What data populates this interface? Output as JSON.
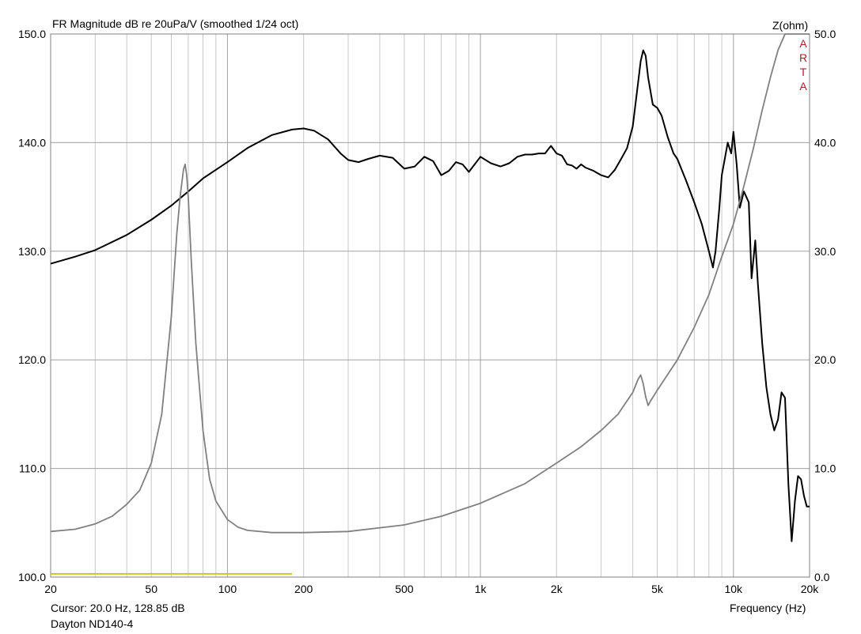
{
  "header": {
    "title": "FR Magnitude dB re 20uPa/V (smoothed 1/24 oct)",
    "right_axis_title": "Z(ohm)",
    "watermark": [
      "A",
      "R",
      "T",
      "A"
    ]
  },
  "footer": {
    "cursor": "Cursor: 20.0 Hz, 128.85 dB",
    "device": "Dayton ND140-4",
    "x_axis_label": "Frequency (Hz)"
  },
  "chart_data": {
    "type": "line",
    "title": "FR Magnitude dB re 20uPa/V (smoothed 1/24 oct)",
    "xlabel": "Frequency (Hz)",
    "ylabel": "",
    "y2label": "Z(ohm)",
    "xscale": "log",
    "xlim": [
      20,
      20000
    ],
    "ylim": [
      100,
      150
    ],
    "y2lim": [
      0,
      50
    ],
    "grid": true,
    "x_ticks": [
      {
        "v": 20,
        "label": "20"
      },
      {
        "v": 50,
        "label": "50"
      },
      {
        "v": 100,
        "label": "100"
      },
      {
        "v": 200,
        "label": "200"
      },
      {
        "v": 500,
        "label": "500"
      },
      {
        "v": 1000,
        "label": "1k"
      },
      {
        "v": 2000,
        "label": "2k"
      },
      {
        "v": 5000,
        "label": "5k"
      },
      {
        "v": 10000,
        "label": "10k"
      },
      {
        "v": 20000,
        "label": "20k"
      }
    ],
    "y_ticks": [
      "100.0",
      "110.0",
      "120.0",
      "130.0",
      "140.0",
      "150.0"
    ],
    "y2_ticks": [
      "0.0",
      "10.0",
      "20.0",
      "30.0",
      "40.0",
      "50.0"
    ],
    "colors": {
      "frequency_response": "#000000",
      "impedance": "#808080",
      "marker": "#c8c820",
      "grid": "#a0a0a0"
    },
    "series": [
      {
        "key": "frequency_response",
        "axis": "left",
        "x": [
          20,
          25,
          30,
          40,
          50,
          60,
          70,
          80,
          100,
          120,
          150,
          180,
          200,
          220,
          250,
          280,
          300,
          330,
          360,
          400,
          450,
          500,
          550,
          600,
          650,
          700,
          750,
          800,
          850,
          900,
          1000,
          1100,
          1200,
          1300,
          1400,
          1500,
          1600,
          1700,
          1800,
          1900,
          2000,
          2100,
          2200,
          2300,
          2400,
          2500,
          2600,
          2800,
          3000,
          3200,
          3400,
          3600,
          3800,
          4000,
          4200,
          4300,
          4400,
          4500,
          4600,
          4800,
          5000,
          5200,
          5500,
          5800,
          6000,
          6500,
          7000,
          7500,
          8000,
          8300,
          8500,
          8800,
          9000,
          9500,
          9800,
          10000,
          10300,
          10600,
          11000,
          11500,
          11800,
          12200,
          12500,
          13000,
          13500,
          14000,
          14500,
          15000,
          15500,
          16000,
          16500,
          17000,
          17500,
          18000,
          18500,
          19000,
          19500,
          20000
        ],
        "y": [
          128.85,
          129.5,
          130.1,
          131.5,
          132.9,
          134.2,
          135.5,
          136.7,
          138.2,
          139.5,
          140.7,
          141.2,
          141.3,
          141.1,
          140.3,
          139.0,
          138.4,
          138.2,
          138.5,
          138.8,
          138.6,
          137.6,
          137.8,
          138.7,
          138.3,
          137.0,
          137.4,
          138.2,
          138.0,
          137.3,
          138.7,
          138.1,
          137.8,
          138.1,
          138.7,
          138.9,
          138.9,
          139.0,
          139.0,
          139.7,
          139.0,
          138.8,
          138.0,
          137.9,
          137.6,
          138.0,
          137.7,
          137.4,
          137.0,
          136.8,
          137.5,
          138.5,
          139.5,
          141.5,
          145.5,
          147.5,
          148.5,
          148.0,
          146.0,
          143.5,
          143.2,
          142.5,
          140.5,
          139.0,
          138.5,
          136.5,
          134.5,
          132.5,
          130.0,
          128.5,
          130.0,
          134.0,
          137.0,
          140.0,
          139.0,
          141.0,
          138.0,
          134.0,
          135.5,
          134.5,
          127.5,
          131.0,
          127.0,
          121.5,
          117.5,
          115.0,
          113.5,
          114.5,
          117.0,
          116.5,
          108.5,
          103.3,
          107.0,
          109.3,
          109.0,
          107.5,
          106.5,
          106.5
        ]
      },
      {
        "key": "impedance",
        "axis": "right",
        "x": [
          20,
          25,
          30,
          35,
          40,
          45,
          50,
          55,
          60,
          63,
          65,
          67,
          68,
          69,
          70,
          72,
          75,
          80,
          85,
          90,
          100,
          110,
          120,
          150,
          200,
          300,
          500,
          700,
          1000,
          1500,
          2000,
          2500,
          3000,
          3500,
          4000,
          4200,
          4300,
          4400,
          4500,
          4600,
          4700,
          5000,
          6000,
          7000,
          8000,
          9000,
          10000,
          11000,
          12000,
          13000,
          14000,
          15000,
          16000,
          17000,
          18000,
          19000,
          19500,
          20000
        ],
        "y": [
          4.2,
          4.4,
          4.9,
          5.6,
          6.7,
          8.0,
          10.5,
          15.0,
          24.0,
          31.5,
          35.0,
          37.5,
          38.0,
          37.0,
          35.0,
          29.0,
          21.5,
          13.5,
          9.0,
          7.0,
          5.3,
          4.6,
          4.3,
          4.1,
          4.1,
          4.2,
          4.8,
          5.6,
          6.8,
          8.6,
          10.5,
          12.0,
          13.5,
          15.0,
          17.0,
          18.2,
          18.6,
          17.8,
          16.6,
          15.8,
          16.2,
          17.2,
          20.0,
          23.0,
          26.0,
          29.5,
          32.5,
          36.0,
          39.5,
          43.0,
          46.0,
          48.5,
          50.5,
          52.0,
          53.0,
          54.0,
          54.3,
          54.5
        ]
      },
      {
        "key": "marker",
        "axis": "left",
        "x": [
          20,
          180
        ],
        "y": [
          100.3,
          100.3
        ]
      }
    ]
  }
}
